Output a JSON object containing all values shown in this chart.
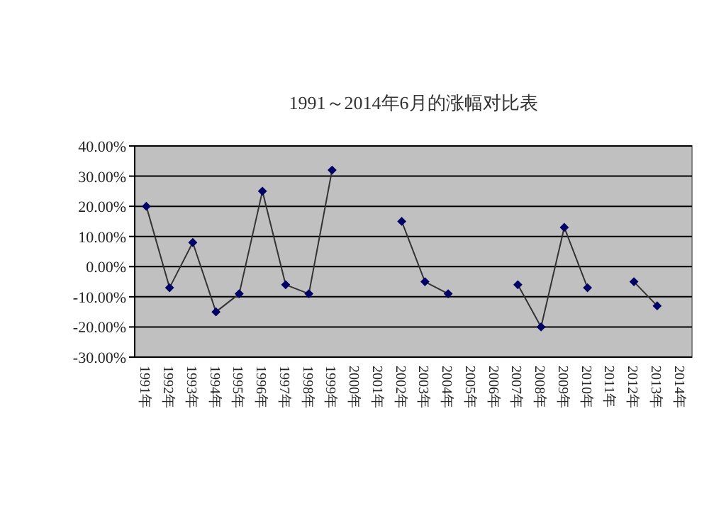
{
  "chart_data": {
    "type": "line",
    "title": "1991～2014年6月的涨幅对比表",
    "categories": [
      "1991年",
      "1992年",
      "1993年",
      "1994年",
      "1995年",
      "1996年",
      "1997年",
      "1998年",
      "1999年",
      "2000年",
      "2001年",
      "2002年",
      "2003年",
      "2004年",
      "2005年",
      "2006年",
      "2007年",
      "2008年",
      "2009年",
      "2010年",
      "2011年",
      "2012年",
      "2013年",
      "2014年"
    ],
    "series": [
      {
        "color": "#000066",
        "values": [
          20,
          -7,
          8,
          -15,
          -9,
          25,
          -6,
          -9,
          32,
          null,
          null,
          15,
          -5,
          -9,
          null,
          null,
          -6,
          -20,
          13,
          -7,
          null,
          -5,
          -13,
          null
        ]
      }
    ],
    "ylim": [
      -30,
      40
    ],
    "yticks": [
      {
        "value": -30,
        "label": "-30.00%"
      },
      {
        "value": -20,
        "label": "-20.00%"
      },
      {
        "value": -10,
        "label": "-10.00%"
      },
      {
        "value": 0,
        "label": "0.00%"
      },
      {
        "value": 10,
        "label": "10.00%"
      },
      {
        "value": 20,
        "label": "20.00%"
      },
      {
        "value": 30,
        "label": "30.00%"
      },
      {
        "value": 40,
        "label": "40.00%"
      }
    ],
    "grid": "y",
    "marker": "diamond"
  }
}
